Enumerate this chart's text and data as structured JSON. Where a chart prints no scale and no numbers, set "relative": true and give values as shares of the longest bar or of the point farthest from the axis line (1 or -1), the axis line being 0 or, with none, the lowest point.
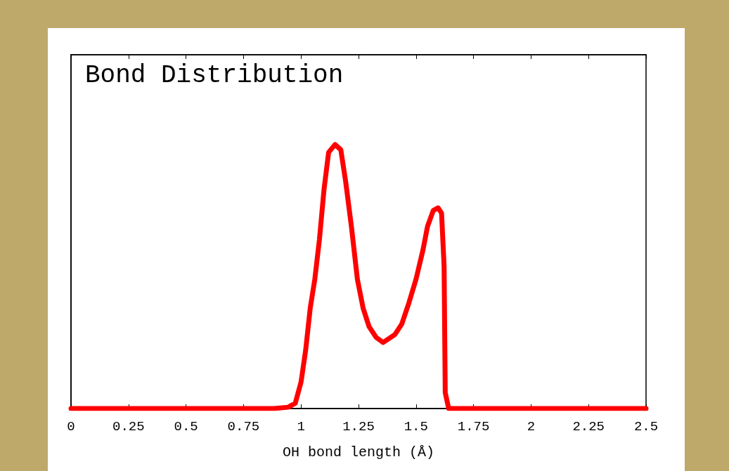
{
  "chart_data": {
    "type": "line",
    "title": "Bond Distribution",
    "xlabel": "OH bond length (Å)",
    "relative": true,
    "xlim": [
      0,
      2.5
    ],
    "xticks": [
      0,
      0.25,
      0.5,
      0.75,
      1,
      1.25,
      1.5,
      1.75,
      2,
      2.25,
      2.5
    ],
    "grid": false,
    "marker": "none",
    "line_style": "solid",
    "series": [
      {
        "color": "#ff0000",
        "x": [
          0,
          0.882,
          0.944,
          0.975,
          1.0,
          1.02,
          1.04,
          1.06,
          1.08,
          1.1,
          1.12,
          1.148,
          1.173,
          1.194,
          1.219,
          1.245,
          1.27,
          1.296,
          1.326,
          1.357,
          1.408,
          1.438,
          1.469,
          1.5,
          1.53,
          1.55,
          1.575,
          1.596,
          1.611,
          1.622,
          1.627,
          1.642,
          2.5
        ],
        "values": [
          0,
          0,
          0.005,
          0.02,
          0.1,
          0.22,
          0.38,
          0.49,
          0.64,
          0.83,
          0.97,
          1,
          0.98,
          0.86,
          0.69,
          0.49,
          0.38,
          0.31,
          0.27,
          0.25,
          0.28,
          0.32,
          0.4,
          0.49,
          0.6,
          0.69,
          0.75,
          0.76,
          0.74,
          0.54,
          0.06,
          0,
          0
        ]
      }
    ]
  }
}
